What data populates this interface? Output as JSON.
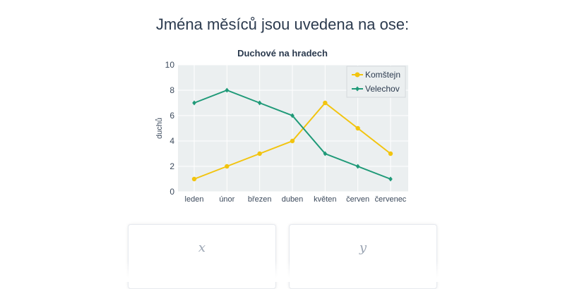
{
  "question": {
    "text": "Jména měsíců jsou uvedena na ose:"
  },
  "chart_data": {
    "type": "line",
    "title": "Duchové na hradech",
    "xlabel": "",
    "ylabel": "duchů",
    "categories": [
      "leden",
      "únor",
      "březen",
      "duben",
      "květen",
      "červen",
      "červenec"
    ],
    "series": [
      {
        "name": "Komštejn",
        "color": "#f2c40f",
        "marker": "circle",
        "values": [
          1,
          2,
          3,
          4,
          7,
          5,
          3
        ]
      },
      {
        "name": "Velechov",
        "color": "#1f9a78",
        "marker": "diamond",
        "values": [
          7,
          8,
          7,
          6,
          3,
          2,
          1
        ]
      }
    ],
    "ylim": [
      0,
      10
    ],
    "yticks": [
      0,
      2,
      4,
      6,
      8,
      10
    ],
    "grid": true,
    "legend_position": "top-right",
    "plot_bg": "#ebeff0"
  },
  "answers": [
    {
      "label": "x"
    },
    {
      "label": "y"
    }
  ]
}
